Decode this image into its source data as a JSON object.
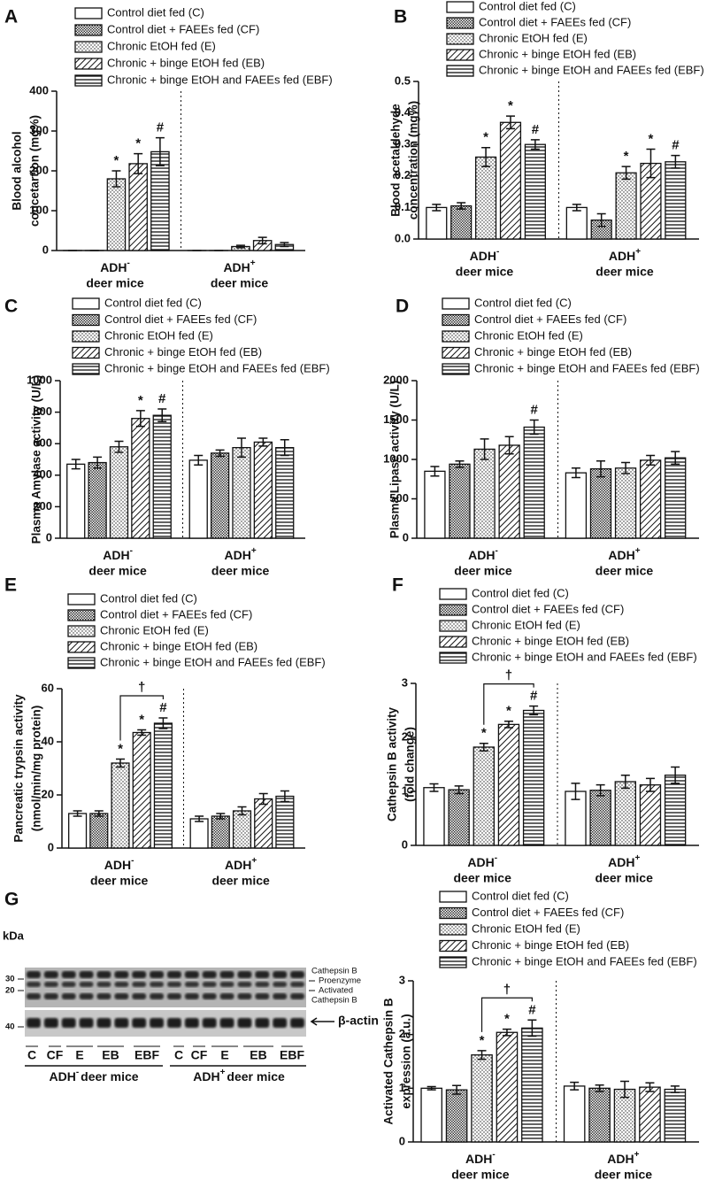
{
  "chart_data": [
    {
      "type": "bar",
      "panel": "A",
      "ylabel": [
        "Blood alcohol",
        "concetartion (mg%)"
      ],
      "ylim": [
        0,
        400
      ],
      "yticks": [
        0,
        100,
        200,
        300,
        400
      ],
      "groups": [
        {
          "label": "ADH",
          "superscript": "-",
          "line2": "deer mice"
        },
        {
          "label": "ADH",
          "superscript": "+",
          "line2": "deer mice"
        }
      ],
      "series": [
        {
          "name": "Control diet fed (C)",
          "pattern": "none",
          "color": "#ffffff",
          "values": [
            0,
            0
          ],
          "errors": [
            0,
            0
          ],
          "annotations": [
            null,
            null
          ]
        },
        {
          "name": "Control diet + FAEEs fed (CF)",
          "pattern": "checker",
          "color": "#ffffff",
          "values": [
            0,
            0
          ],
          "errors": [
            0,
            0
          ],
          "annotations": [
            null,
            null
          ]
        },
        {
          "name": "Chronic EtOH fed (E)",
          "pattern": "dots",
          "color": "#ffffff",
          "values": [
            180,
            10
          ],
          "errors": [
            20,
            3
          ],
          "annotations": [
            "*",
            null
          ]
        },
        {
          "name": "Chronic + binge EtOH fed (EB)",
          "pattern": "diagonal",
          "color": "#ffffff",
          "values": [
            218,
            25
          ],
          "errors": [
            25,
            8
          ],
          "annotations": [
            "*",
            null
          ]
        },
        {
          "name": "Chronic + binge EtOH and FAEEs fed (EBF)",
          "pattern": "horizontal",
          "color": "#ffffff",
          "values": [
            248,
            15
          ],
          "errors": [
            35,
            5
          ],
          "annotations": [
            "#",
            null
          ]
        }
      ]
    },
    {
      "type": "bar",
      "panel": "B",
      "ylabel": [
        "Blood acetaldehyde",
        "concentration (mg%)"
      ],
      "ylim": [
        0,
        0.5
      ],
      "yticks": [
        {
          "value": 0,
          "label": "0.0"
        },
        0.1,
        0.2,
        0.3,
        0.4,
        0.5
      ],
      "groups": [
        {
          "label": "ADH",
          "superscript": "-",
          "line2": "deer mice"
        },
        {
          "label": "ADH",
          "superscript": "+",
          "line2": "deer mice"
        }
      ],
      "series": [
        {
          "name": "Control diet fed (C)",
          "pattern": "none",
          "color": "#ffffff",
          "values": [
            0.1,
            0.1
          ],
          "errors": [
            0.01,
            0.01
          ],
          "annotations": [
            null,
            null
          ]
        },
        {
          "name": "Control diet + FAEEs fed (CF)",
          "pattern": "checker",
          "color": "#ffffff",
          "values": [
            0.105,
            0.06
          ],
          "errors": [
            0.01,
            0.02
          ],
          "annotations": [
            null,
            null
          ]
        },
        {
          "name": "Chronic EtOH fed (E)",
          "pattern": "dots",
          "color": "#ffffff",
          "values": [
            0.26,
            0.21
          ],
          "errors": [
            0.03,
            0.02
          ],
          "annotations": [
            "*",
            "*"
          ]
        },
        {
          "name": "Chronic + binge EtOH fed (EB)",
          "pattern": "diagonal",
          "color": "#ffffff",
          "values": [
            0.37,
            0.24
          ],
          "errors": [
            0.02,
            0.045
          ],
          "annotations": [
            "*",
            "*"
          ]
        },
        {
          "name": "Chronic + binge EtOH and FAEEs fed (EBF)",
          "pattern": "horizontal",
          "color": "#ffffff",
          "values": [
            0.3,
            0.245
          ],
          "errors": [
            0.015,
            0.02
          ],
          "annotations": [
            "#",
            "#"
          ]
        }
      ]
    },
    {
      "type": "bar",
      "panel": "C",
      "ylabel": [
        "Plasma Amylase activity (U/L)"
      ],
      "ylim": [
        0,
        1000
      ],
      "yticks": [
        0,
        200,
        400,
        600,
        800,
        1000
      ],
      "groups": [
        {
          "label": "ADH",
          "superscript": "-",
          "line2": "deer mice"
        },
        {
          "label": "ADH",
          "superscript": "+",
          "line2": "deer mice"
        }
      ],
      "series": [
        {
          "name": "Control diet fed (C)",
          "pattern": "none",
          "color": "#ffffff",
          "values": [
            470,
            495
          ],
          "errors": [
            30,
            30
          ],
          "annotations": [
            null,
            null
          ]
        },
        {
          "name": "Control diet + FAEEs fed (CF)",
          "pattern": "checker",
          "color": "#ffffff",
          "values": [
            480,
            540
          ],
          "errors": [
            35,
            20
          ],
          "annotations": [
            null,
            null
          ]
        },
        {
          "name": "Chronic EtOH fed (E)",
          "pattern": "dots",
          "color": "#ffffff",
          "values": [
            580,
            575
          ],
          "errors": [
            35,
            60
          ],
          "annotations": [
            null,
            null
          ]
        },
        {
          "name": "Chronic + binge EtOH fed (EB)",
          "pattern": "diagonal",
          "color": "#ffffff",
          "values": [
            760,
            610
          ],
          "errors": [
            50,
            25
          ],
          "annotations": [
            "*",
            null
          ]
        },
        {
          "name": "Chronic + binge EtOH and FAEEs fed (EBF)",
          "pattern": "horizontal",
          "color": "#ffffff",
          "values": [
            780,
            575
          ],
          "errors": [
            40,
            50
          ],
          "annotations": [
            "#",
            null
          ]
        }
      ]
    },
    {
      "type": "bar",
      "panel": "D",
      "ylabel": [
        "Plasma Lipase activity (U/L)"
      ],
      "ylim": [
        0,
        2000
      ],
      "yticks": [
        0,
        500,
        1000,
        1500,
        2000
      ],
      "groups": [
        {
          "label": "ADH",
          "superscript": "-",
          "line2": "deer mice"
        },
        {
          "label": "ADH",
          "superscript": "+",
          "line2": "deer mice"
        }
      ],
      "series": [
        {
          "name": "Control diet fed (C)",
          "pattern": "none",
          "color": "#ffffff",
          "values": [
            850,
            830
          ],
          "errors": [
            60,
            60
          ],
          "annotations": [
            null,
            null
          ]
        },
        {
          "name": "Control diet + FAEEs fed (CF)",
          "pattern": "checker",
          "color": "#ffffff",
          "values": [
            940,
            880
          ],
          "errors": [
            40,
            100
          ],
          "annotations": [
            null,
            null
          ]
        },
        {
          "name": "Chronic EtOH fed (E)",
          "pattern": "dots",
          "color": "#ffffff",
          "values": [
            1130,
            890
          ],
          "errors": [
            130,
            70
          ],
          "annotations": [
            null,
            null
          ]
        },
        {
          "name": "Chronic + binge EtOH fed (EB)",
          "pattern": "diagonal",
          "color": "#ffffff",
          "values": [
            1180,
            990
          ],
          "errors": [
            110,
            60
          ],
          "annotations": [
            null,
            null
          ]
        },
        {
          "name": "Chronic + binge EtOH and FAEEs fed (EBF)",
          "pattern": "horizontal",
          "color": "#ffffff",
          "values": [
            1410,
            1020
          ],
          "errors": [
            90,
            80
          ],
          "annotations": [
            "#",
            null
          ]
        }
      ]
    },
    {
      "type": "bar",
      "panel": "E",
      "ylabel": [
        "Pancreatic trypsin activity",
        "(nmol/min/mg protein)"
      ],
      "ylim": [
        0,
        60
      ],
      "yticks": [
        0,
        20,
        40,
        60
      ],
      "bracket_label": "†",
      "groups": [
        {
          "label": "ADH",
          "superscript": "-",
          "line2": "deer mice"
        },
        {
          "label": "ADH",
          "superscript": "+",
          "line2": "deer mice"
        }
      ],
      "series": [
        {
          "name": "Control diet fed (C)",
          "pattern": "none",
          "color": "#ffffff",
          "values": [
            13,
            11
          ],
          "errors": [
            1,
            1
          ],
          "annotations": [
            null,
            null
          ]
        },
        {
          "name": "Control diet + FAEEs fed (CF)",
          "pattern": "checker",
          "color": "#ffffff",
          "values": [
            13,
            12
          ],
          "errors": [
            1,
            1
          ],
          "annotations": [
            null,
            null
          ]
        },
        {
          "name": "Chronic EtOH fed (E)",
          "pattern": "dots",
          "color": "#ffffff",
          "values": [
            32,
            14
          ],
          "errors": [
            1.5,
            1.5
          ],
          "annotations": [
            "*",
            null
          ]
        },
        {
          "name": "Chronic + binge EtOH fed (EB)",
          "pattern": "diagonal",
          "color": "#ffffff",
          "values": [
            43.5,
            18.5
          ],
          "errors": [
            1,
            2
          ],
          "annotations": [
            "*",
            null
          ]
        },
        {
          "name": "Chronic + binge EtOH and FAEEs fed (EBF)",
          "pattern": "horizontal",
          "color": "#ffffff",
          "values": [
            47,
            19.5
          ],
          "errors": [
            2,
            2
          ],
          "annotations": [
            "#",
            null
          ]
        }
      ]
    },
    {
      "type": "bar",
      "panel": "F",
      "ylabel": [
        "Cathepsin B activity",
        "(fold change)"
      ],
      "ylim": [
        0,
        3
      ],
      "yticks": [
        0,
        1,
        2,
        3
      ],
      "bracket_label": "†",
      "groups": [
        {
          "label": "ADH",
          "superscript": "-",
          "line2": "deer mice"
        },
        {
          "label": "ADH",
          "superscript": "+",
          "line2": "deer mice"
        }
      ],
      "series": [
        {
          "name": "Control diet fed (C)",
          "pattern": "none",
          "color": "#ffffff",
          "values": [
            1.07,
            1.0
          ],
          "errors": [
            0.07,
            0.15
          ],
          "annotations": [
            null,
            null
          ]
        },
        {
          "name": "Control diet + FAEEs fed (CF)",
          "pattern": "checker",
          "color": "#ffffff",
          "values": [
            1.03,
            1.02
          ],
          "errors": [
            0.07,
            0.1
          ],
          "annotations": [
            null,
            null
          ]
        },
        {
          "name": "Chronic EtOH fed (E)",
          "pattern": "dots",
          "color": "#ffffff",
          "values": [
            1.82,
            1.18
          ],
          "errors": [
            0.07,
            0.12
          ],
          "annotations": [
            "*",
            null
          ]
        },
        {
          "name": "Chronic + binge EtOH fed (EB)",
          "pattern": "diagonal",
          "color": "#ffffff",
          "values": [
            2.24,
            1.12
          ],
          "errors": [
            0.06,
            0.12
          ],
          "annotations": [
            "*",
            null
          ]
        },
        {
          "name": "Chronic + binge EtOH and FAEEs fed (EBF)",
          "pattern": "horizontal",
          "color": "#ffffff",
          "values": [
            2.5,
            1.3
          ],
          "errors": [
            0.08,
            0.15
          ],
          "annotations": [
            "#",
            null
          ]
        }
      ]
    },
    {
      "type": "bar",
      "panel": "G",
      "ylabel": [
        "Activated Cathepsin B",
        "expression (a.u.)"
      ],
      "ylim": [
        0,
        3
      ],
      "yticks": [
        0,
        1,
        2,
        3
      ],
      "bracket_label": "†",
      "groups": [
        {
          "label": "ADH",
          "superscript": "-",
          "line2": "deer mice"
        },
        {
          "label": "ADH",
          "superscript": "+",
          "line2": "deer mice"
        }
      ],
      "series": [
        {
          "name": "Control diet fed (C)",
          "pattern": "none",
          "color": "#ffffff",
          "values": [
            1.0,
            1.04
          ],
          "errors": [
            0.03,
            0.07
          ],
          "annotations": [
            null,
            null
          ]
        },
        {
          "name": "Control diet + FAEEs fed (CF)",
          "pattern": "checker",
          "color": "#ffffff",
          "values": [
            0.97,
            1.0
          ],
          "errors": [
            0.08,
            0.06
          ],
          "annotations": [
            null,
            null
          ]
        },
        {
          "name": "Chronic EtOH fed (E)",
          "pattern": "dots",
          "color": "#ffffff",
          "values": [
            1.62,
            0.98
          ],
          "errors": [
            0.08,
            0.15
          ],
          "annotations": [
            "*",
            null
          ]
        },
        {
          "name": "Chronic + binge EtOH fed (EB)",
          "pattern": "diagonal",
          "color": "#ffffff",
          "values": [
            2.04,
            1.02
          ],
          "errors": [
            0.06,
            0.08
          ],
          "annotations": [
            "*",
            null
          ]
        },
        {
          "name": "Chronic + binge EtOH and FAEEs fed (EBF)",
          "pattern": "horizontal",
          "color": "#ffffff",
          "values": [
            2.12,
            0.98
          ],
          "errors": [
            0.15,
            0.06
          ],
          "annotations": [
            "#",
            null
          ]
        }
      ]
    }
  ],
  "blot": {
    "unit": "kDa",
    "markers": [
      "30",
      "20",
      "40"
    ],
    "band_labels": [
      "Cathepsin B",
      "Proenzyme",
      "Activated",
      "Cathepsin B",
      "β-actin"
    ],
    "lanes": [
      "C",
      "CF",
      "E",
      "EB",
      "EBF",
      "C",
      "CF",
      "E",
      "EB",
      "EBF"
    ],
    "groups": [
      {
        "label": "ADH",
        "superscript": "-",
        "line2": "deer mice"
      },
      {
        "label": "ADH",
        "superscript": "+",
        "line2": "deer mice"
      }
    ]
  }
}
